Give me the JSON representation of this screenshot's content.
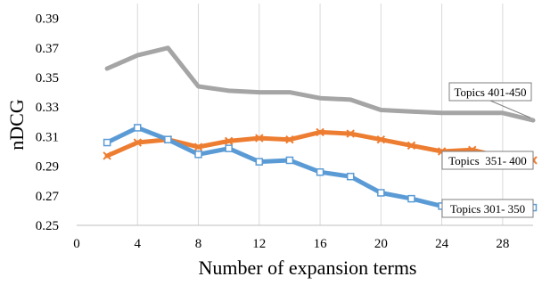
{
  "chart_data": {
    "type": "line",
    "title": "",
    "xlabel": "Number of expansion terms",
    "ylabel": "nDCG",
    "xlim": [
      0,
      30
    ],
    "ylim": [
      0.25,
      0.4
    ],
    "x_ticks": [
      0,
      4,
      8,
      12,
      16,
      20,
      24,
      28
    ],
    "y_ticks": [
      0.25,
      0.27,
      0.29,
      0.31,
      0.33,
      0.35,
      0.37,
      0.39
    ],
    "grid": "vertical",
    "x": [
      2,
      4,
      6,
      8,
      10,
      12,
      14,
      16,
      18,
      20,
      22,
      24,
      26,
      28,
      30
    ],
    "series": [
      {
        "name": "Topics 401-450",
        "color": "#a5a5a5",
        "marker": "none",
        "values": [
          0.356,
          0.365,
          0.37,
          0.344,
          0.341,
          0.34,
          0.34,
          0.336,
          0.335,
          0.328,
          0.327,
          0.326,
          0.326,
          0.326,
          0.321
        ]
      },
      {
        "name": "Topics  351- 400",
        "color": "#ed7d31",
        "marker": "x",
        "values": [
          0.297,
          0.306,
          0.308,
          0.303,
          0.307,
          0.309,
          0.308,
          0.313,
          0.312,
          0.308,
          0.304,
          0.3,
          0.301,
          0.296,
          0.294
        ]
      },
      {
        "name": "Topics 301- 350",
        "color": "#5b9bd5",
        "marker": "square",
        "values": [
          0.306,
          0.316,
          0.308,
          0.298,
          0.302,
          0.293,
          0.294,
          0.286,
          0.283,
          0.272,
          0.268,
          0.263,
          0.262,
          0.259,
          0.262
        ]
      }
    ]
  }
}
